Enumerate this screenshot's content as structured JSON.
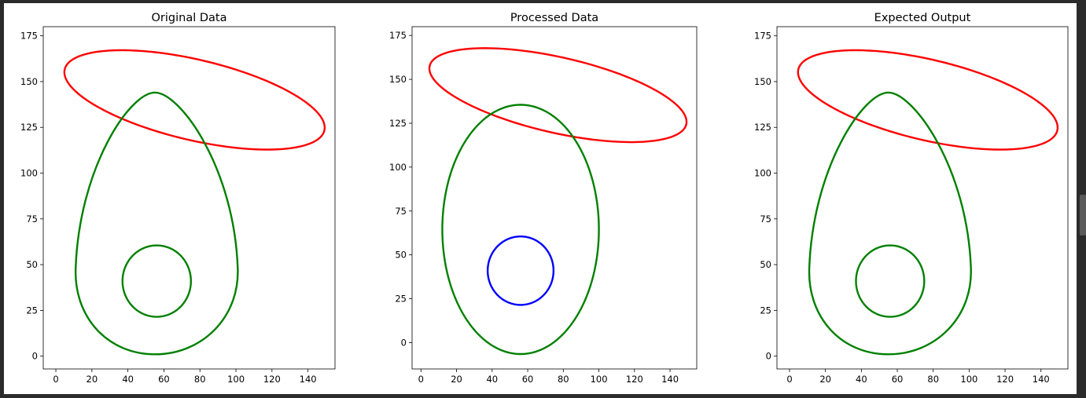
{
  "chart_data": [
    {
      "type": "line",
      "title": "Original Data",
      "xlim": [
        -7,
        155
      ],
      "ylim": [
        -7,
        180
      ],
      "xticks": [
        0,
        20,
        40,
        60,
        80,
        100,
        120,
        140
      ],
      "yticks": [
        0,
        25,
        50,
        75,
        100,
        125,
        150,
        175
      ],
      "series": [
        {
          "color": "#ff0000",
          "kind": "ellipse",
          "cx": 77,
          "cy": 140,
          "rx": 74,
          "ry": 22,
          "angle_deg": -13
        },
        {
          "color": "#008000",
          "kind": "avocado",
          "cx": 55,
          "cy": 144,
          "top": 144,
          "bottom": 1,
          "wide_y": 48,
          "left": 11,
          "right": 101
        },
        {
          "color": "#008000",
          "kind": "ellipse",
          "cx": 56,
          "cy": 41,
          "rx": 19,
          "ry": 19.5,
          "angle_deg": 0
        }
      ]
    },
    {
      "type": "line",
      "title": "Processed Data",
      "xlim": [
        -5,
        155
      ],
      "ylim": [
        -15,
        180
      ],
      "xticks": [
        0,
        20,
        40,
        60,
        80,
        100,
        120,
        140
      ],
      "yticks": [
        0,
        25,
        50,
        75,
        100,
        125,
        150,
        175
      ],
      "series": [
        {
          "color": "#ff0000",
          "kind": "ellipse",
          "cx": 77,
          "cy": 141,
          "rx": 74,
          "ry": 21.5,
          "angle_deg": -13
        },
        {
          "color": "#008000",
          "kind": "ellipse",
          "cx": 56,
          "cy": 64.5,
          "rx": 44,
          "ry": 71,
          "angle_deg": 0
        },
        {
          "color": "#0000ff",
          "kind": "ellipse",
          "cx": 56,
          "cy": 41,
          "rx": 18.5,
          "ry": 19.5,
          "angle_deg": 0
        }
      ]
    },
    {
      "type": "line",
      "title": "Expected Output",
      "xlim": [
        -7,
        155
      ],
      "ylim": [
        -7,
        180
      ],
      "xticks": [
        0,
        20,
        40,
        60,
        80,
        100,
        120,
        140
      ],
      "yticks": [
        0,
        25,
        50,
        75,
        100,
        125,
        150,
        175
      ],
      "series": [
        {
          "color": "#ff0000",
          "kind": "ellipse",
          "cx": 77,
          "cy": 140,
          "rx": 74,
          "ry": 22,
          "angle_deg": -13
        },
        {
          "color": "#008000",
          "kind": "avocado",
          "cx": 55,
          "cy": 144,
          "top": 144,
          "bottom": 1,
          "wide_y": 48,
          "left": 11,
          "right": 101
        },
        {
          "color": "#008000",
          "kind": "ellipse",
          "cx": 56,
          "cy": 41,
          "rx": 19,
          "ry": 19.5,
          "angle_deg": 0
        }
      ]
    }
  ]
}
